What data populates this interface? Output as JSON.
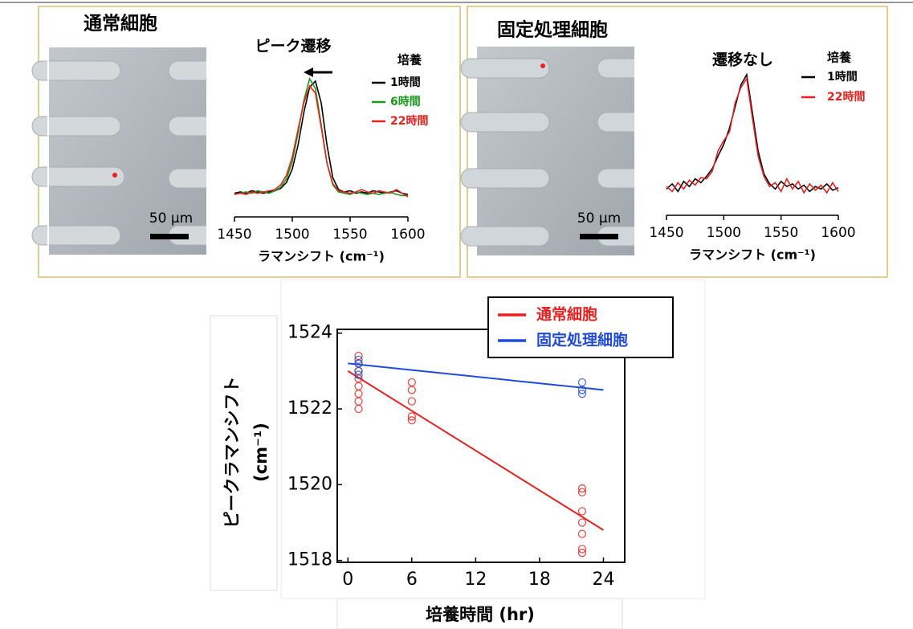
{
  "chart_data": [
    {
      "type": "line",
      "panel_title": "通常細胞",
      "scale_label": "50 μm",
      "title": "ピーク遷移",
      "legend_title": "培養",
      "x": [
        1450,
        1455,
        1460,
        1465,
        1470,
        1475,
        1480,
        1485,
        1490,
        1495,
        1500,
        1505,
        1510,
        1515,
        1520,
        1525,
        1530,
        1535,
        1540,
        1545,
        1550,
        1555,
        1560,
        1565,
        1570,
        1575,
        1580,
        1585,
        1590,
        1595,
        1600
      ],
      "xlim": [
        1450,
        1600
      ],
      "xticks": [
        1450,
        1500,
        1550,
        1600
      ],
      "xlabel": "ラマンシフト (cm⁻¹)",
      "series": [
        {
          "name": "1時間",
          "color": "#000000",
          "values": [
            0.05,
            0.06,
            0.05,
            0.07,
            0.06,
            0.05,
            0.06,
            0.07,
            0.09,
            0.14,
            0.25,
            0.45,
            0.72,
            0.93,
            0.98,
            0.8,
            0.45,
            0.18,
            0.08,
            0.06,
            0.07,
            0.05,
            0.06,
            0.05,
            0.07,
            0.06,
            0.05,
            0.06,
            0.07,
            0.05,
            0.04
          ]
        },
        {
          "name": "6時間",
          "color": "#1a9a1a",
          "values": [
            0.04,
            0.05,
            0.06,
            0.05,
            0.07,
            0.06,
            0.05,
            0.07,
            0.1,
            0.17,
            0.31,
            0.55,
            0.82,
            1.0,
            0.92,
            0.62,
            0.3,
            0.12,
            0.06,
            0.05,
            0.04,
            0.06,
            0.05,
            0.04,
            0.05,
            0.04,
            0.05,
            0.06,
            0.04,
            0.03,
            0.03
          ]
        },
        {
          "name": "22時間",
          "color": "#e8201e",
          "values": [
            0.04,
            0.05,
            0.04,
            0.06,
            0.05,
            0.06,
            0.07,
            0.08,
            0.12,
            0.2,
            0.35,
            0.58,
            0.8,
            0.94,
            0.88,
            0.6,
            0.3,
            0.13,
            0.07,
            0.06,
            0.05,
            0.06,
            0.08,
            0.06,
            0.05,
            0.07,
            0.06,
            0.05,
            0.08,
            0.05,
            0.02
          ]
        }
      ]
    },
    {
      "type": "line",
      "panel_title": "固定処理細胞",
      "scale_label": "50 μm",
      "title": "遷移なし",
      "legend_title": "培養",
      "x": [
        1450,
        1455,
        1460,
        1465,
        1470,
        1475,
        1480,
        1485,
        1490,
        1495,
        1500,
        1505,
        1510,
        1515,
        1520,
        1525,
        1530,
        1535,
        1540,
        1545,
        1550,
        1555,
        1560,
        1565,
        1570,
        1575,
        1580,
        1585,
        1590,
        1595,
        1600
      ],
      "xlim": [
        1450,
        1600
      ],
      "xticks": [
        1450,
        1500,
        1550,
        1600
      ],
      "xlabel": "ラマンシフト (cm⁻¹)",
      "series": [
        {
          "name": "1時間",
          "color": "#000000",
          "values": [
            0.1,
            0.14,
            0.08,
            0.16,
            0.12,
            0.18,
            0.15,
            0.2,
            0.26,
            0.36,
            0.45,
            0.58,
            0.75,
            0.92,
            1.0,
            0.7,
            0.4,
            0.22,
            0.14,
            0.1,
            0.16,
            0.12,
            0.14,
            0.1,
            0.13,
            0.08,
            0.12,
            0.1,
            0.14,
            0.09,
            0.11
          ]
        },
        {
          "name": "22時間",
          "color": "#e8201e",
          "values": [
            0.12,
            0.08,
            0.15,
            0.1,
            0.17,
            0.13,
            0.19,
            0.18,
            0.24,
            0.4,
            0.48,
            0.55,
            0.78,
            0.9,
            0.97,
            0.66,
            0.36,
            0.2,
            0.12,
            0.15,
            0.08,
            0.18,
            0.1,
            0.16,
            0.07,
            0.14,
            0.09,
            0.13,
            0.07,
            0.15,
            0.08
          ]
        }
      ]
    },
    {
      "type": "scatter",
      "xlabel": "培養時間 (hr)",
      "ylabel": [
        "ピークラマンシフト",
        "(cm⁻¹)"
      ],
      "xlim": [
        -1,
        26
      ],
      "xticks": [
        0,
        6,
        12,
        18,
        24
      ],
      "ylim": [
        1517.95,
        1524.1
      ],
      "yticks": [
        1518,
        1520,
        1522,
        1524
      ],
      "series": [
        {
          "name": "通常細胞",
          "color": "#e8201e",
          "x": [
            1,
            1,
            1,
            1,
            1,
            1,
            1,
            1,
            6,
            6,
            6,
            6,
            6,
            22,
            22,
            22,
            22,
            22,
            22,
            22
          ],
          "values": [
            1523.4,
            1523.2,
            1523.0,
            1522.8,
            1522.6,
            1522.4,
            1522.2,
            1522.0,
            1522.7,
            1522.5,
            1522.2,
            1521.8,
            1521.7,
            1519.9,
            1519.8,
            1519.3,
            1519.0,
            1518.7,
            1518.3,
            1518.2
          ],
          "fit_x": [
            0,
            24
          ],
          "fit_values": [
            1523.0,
            1518.8
          ]
        },
        {
          "name": "固定処理細胞",
          "color": "#1f4bd8",
          "x": [
            1,
            1,
            1,
            1,
            22,
            22,
            22
          ],
          "values": [
            1523.3,
            1523.2,
            1523.0,
            1522.9,
            1522.7,
            1522.5,
            1522.4
          ],
          "fit_x": [
            0,
            24
          ],
          "fit_values": [
            1523.2,
            1522.5
          ]
        }
      ]
    }
  ]
}
